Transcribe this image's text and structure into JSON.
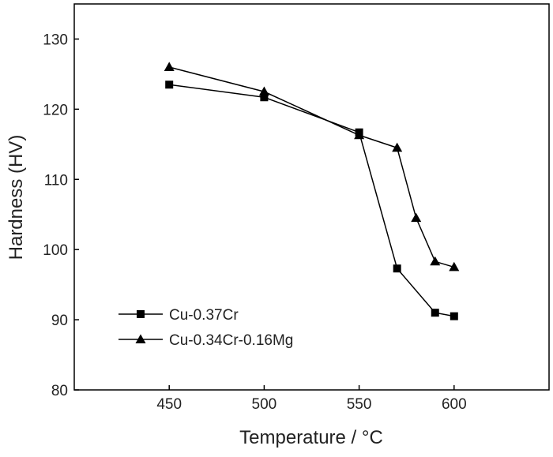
{
  "chart_data": {
    "type": "line",
    "xlabel": "Temperature / °C",
    "ylabel": "Hardness (HV)",
    "xlim": [
      400,
      650
    ],
    "ylim": [
      80,
      135
    ],
    "x_ticks": [
      450,
      500,
      550,
      600
    ],
    "y_ticks": [
      80,
      90,
      100,
      110,
      120,
      130
    ],
    "grid": false,
    "legend_position": "bottom-left",
    "series": [
      {
        "name": "Cu-0.37Cr",
        "marker": "square",
        "color": "#000000",
        "x": [
          450,
          500,
          550,
          570,
          590,
          600
        ],
        "y": [
          123.5,
          121.7,
          116.7,
          97.3,
          91.0,
          90.5
        ]
      },
      {
        "name": "Cu-0.34Cr-0.16Mg",
        "marker": "triangle",
        "color": "#000000",
        "x": [
          450,
          500,
          550,
          570,
          580,
          590,
          600
        ],
        "y": [
          126.0,
          122.5,
          116.3,
          114.5,
          104.5,
          98.3,
          97.5
        ]
      }
    ]
  }
}
